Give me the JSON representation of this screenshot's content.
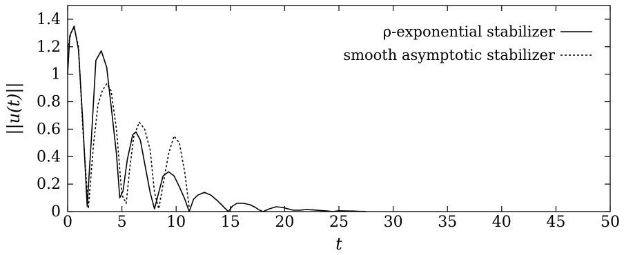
{
  "chart_data": {
    "type": "line",
    "title": "",
    "xlabel": "t",
    "ylabel": "||u(t)||",
    "xlim": [
      0,
      50
    ],
    "ylim": [
      0,
      1.5
    ],
    "xticks": [
      0,
      5,
      10,
      15,
      20,
      25,
      30,
      35,
      40,
      45,
      50
    ],
    "yticks": [
      0,
      0.2,
      0.4,
      0.6,
      0.8,
      1,
      1.2,
      1.4
    ],
    "xtick_labels": [
      "0",
      "5",
      "10",
      "15",
      "20",
      "25",
      "30",
      "35",
      "40",
      "45",
      "50"
    ],
    "ytick_labels": [
      "0",
      "0.2",
      "0.4",
      "0.6",
      "0.8",
      "1",
      "1.2",
      "1.4"
    ],
    "grid": false,
    "legend_position": "top-right",
    "series": [
      {
        "name": "ρ-exponential stabilizer",
        "style": "solid",
        "color": "#000000",
        "x": [
          0,
          0.2,
          0.6,
          1.0,
          1.4,
          1.8,
          2.2,
          2.6,
          3.1,
          3.6,
          4.1,
          4.5,
          4.8,
          5.1,
          5.5,
          6.0,
          6.3,
          6.7,
          7.1,
          7.6,
          8.0,
          8.4,
          8.8,
          9.3,
          9.8,
          10.3,
          10.8,
          11.2,
          11.6,
          12.0,
          12.6,
          13.2,
          13.8,
          14.3,
          14.8,
          15.2,
          15.6,
          16.2,
          16.8,
          17.3,
          17.7,
          18.0,
          18.6,
          19.2,
          19.8,
          20.3,
          20.8,
          21.4,
          22.0,
          22.6,
          23.3,
          24.0,
          24.4,
          25.0,
          25.6,
          26.2,
          26.8,
          27.5
        ],
        "values": [
          1.0,
          1.28,
          1.35,
          1.18,
          0.65,
          0.04,
          0.55,
          1.1,
          1.17,
          1.05,
          0.7,
          0.42,
          0.1,
          0.15,
          0.38,
          0.56,
          0.58,
          0.52,
          0.35,
          0.14,
          0.02,
          0.14,
          0.26,
          0.29,
          0.26,
          0.18,
          0.09,
          0.0,
          0.09,
          0.12,
          0.14,
          0.12,
          0.08,
          0.04,
          0.0,
          0.04,
          0.06,
          0.06,
          0.05,
          0.03,
          0.01,
          0.0,
          0.02,
          0.035,
          0.03,
          0.02,
          0.01,
          0.01,
          0.015,
          0.012,
          0.008,
          0.004,
          0.0,
          0.006,
          0.005,
          0.004,
          0.002,
          0.001
        ]
      },
      {
        "name": "smooth asymptotic stabilizer",
        "style": "dotted",
        "color": "#000000",
        "x": [
          0,
          0.3,
          0.6,
          1.0,
          1.4,
          1.9,
          2.4,
          2.8,
          3.2,
          3.6,
          4.0,
          4.5,
          5.0,
          5.4,
          5.7,
          6.1,
          6.6,
          7.1,
          7.6,
          8.0,
          8.4,
          8.8,
          9.3,
          9.8,
          10.3,
          10.8,
          11.2
        ],
        "values": [
          1.18,
          1.3,
          1.34,
          1.2,
          0.6,
          0.02,
          0.5,
          0.78,
          0.88,
          0.93,
          0.88,
          0.6,
          0.12,
          0.06,
          0.3,
          0.55,
          0.65,
          0.6,
          0.45,
          0.14,
          0.02,
          0.2,
          0.42,
          0.55,
          0.5,
          0.28,
          0.03
        ]
      }
    ]
  }
}
